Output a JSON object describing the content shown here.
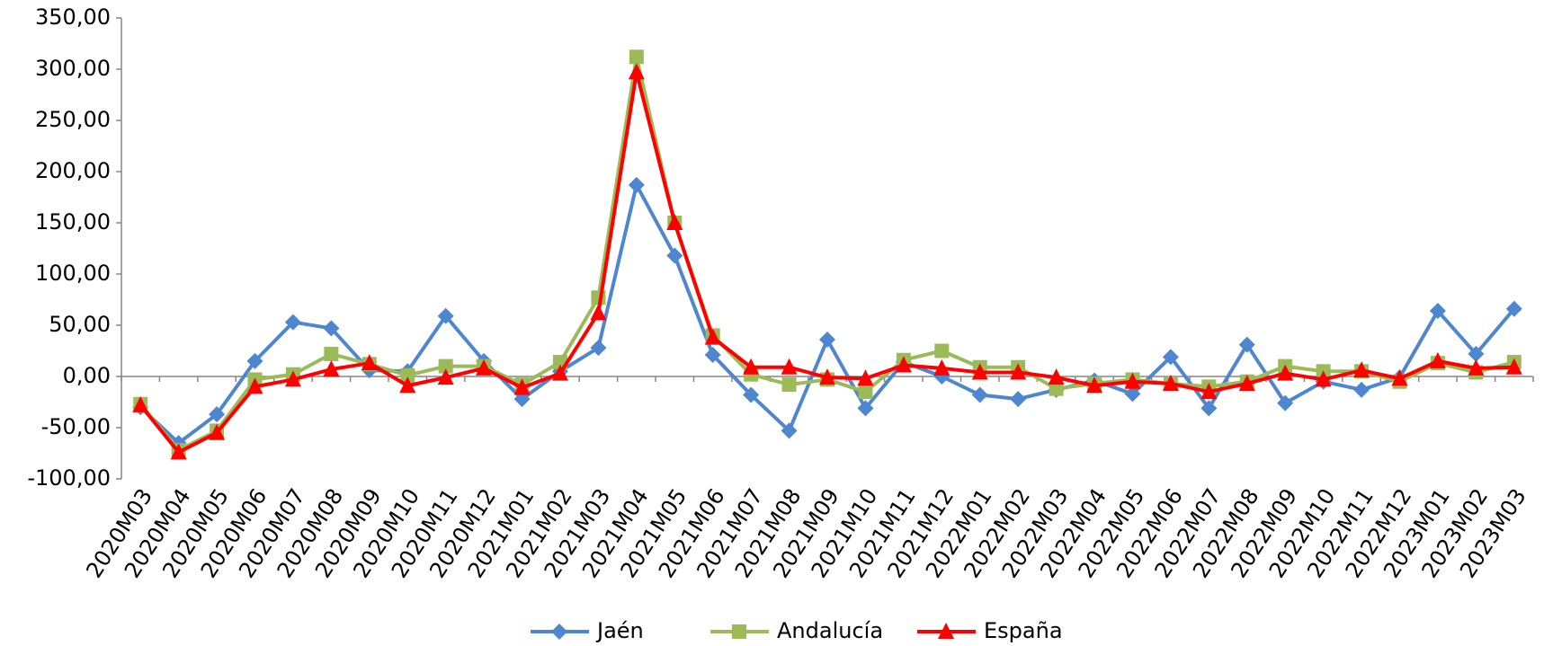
{
  "chart_data": {
    "type": "line",
    "categories": [
      "2020M03",
      "2020M04",
      "2020M05",
      "2020M06",
      "2020M07",
      "2020M08",
      "2020M09",
      "2020M10",
      "2020M11",
      "2020M12",
      "2021M01",
      "2021M02",
      "2021M03",
      "2021M04",
      "2021M05",
      "2021M06",
      "2021M07",
      "2021M08",
      "2021M09",
      "2021M10",
      "2021M11",
      "2021M12",
      "2022M01",
      "2022M02",
      "2022M03",
      "2022M04",
      "2022M05",
      "2022M06",
      "2022M07",
      "2022M08",
      "2022M09",
      "2022M10",
      "2022M11",
      "2022M12",
      "2023M01",
      "2023M02",
      "2023M03"
    ],
    "series": [
      {
        "name": "Jaén",
        "color": "#4f86d0",
        "marker": "diamond",
        "values": [
          -30,
          -65,
          -37,
          15,
          53,
          47,
          6,
          5,
          59,
          15,
          -22,
          5,
          28,
          187,
          118,
          21,
          -18,
          -53,
          36,
          -31,
          14,
          0,
          -18,
          -22,
          -13,
          -4,
          -17,
          19,
          -31,
          31,
          -26,
          -5,
          -13,
          -1,
          64,
          22,
          66
        ]
      },
      {
        "name": "Andalucía",
        "color": "#9bbb59",
        "marker": "square",
        "values": [
          -27,
          -72,
          -53,
          -3,
          2,
          22,
          12,
          1,
          10,
          10,
          -8,
          14,
          77,
          312,
          150,
          40,
          2,
          -8,
          -3,
          -15,
          16,
          25,
          9,
          9,
          -12,
          -7,
          -3,
          -7,
          -10,
          -5,
          10,
          5,
          5,
          -5,
          13,
          4,
          14
        ]
      },
      {
        "name": "España",
        "color": "#ff0000",
        "marker": "triangle",
        "values": [
          -28,
          -74,
          -55,
          -10,
          -3,
          7,
          13,
          -9,
          -1,
          8,
          -11,
          3,
          62,
          297,
          150,
          38,
          9,
          9,
          -1,
          -2,
          11,
          8,
          4,
          4,
          -1,
          -9,
          -5,
          -7,
          -15,
          -7,
          3,
          -3,
          6,
          -2,
          15,
          8,
          9
        ]
      }
    ],
    "ylim": [
      -100,
      350
    ],
    "yticks": [
      {
        "value": -100,
        "label": "-100,00"
      },
      {
        "value": -50,
        "label": "-50,00"
      },
      {
        "value": 0,
        "label": "0,00"
      },
      {
        "value": 50,
        "label": "50,00"
      },
      {
        "value": 100,
        "label": "100,00"
      },
      {
        "value": 150,
        "label": "150,00"
      },
      {
        "value": 200,
        "label": "200,00"
      },
      {
        "value": 250,
        "label": "250,00"
      },
      {
        "value": 300,
        "label": "300,00"
      },
      {
        "value": 350,
        "label": "350,00"
      }
    ],
    "legend": "bottom",
    "grid": false
  }
}
